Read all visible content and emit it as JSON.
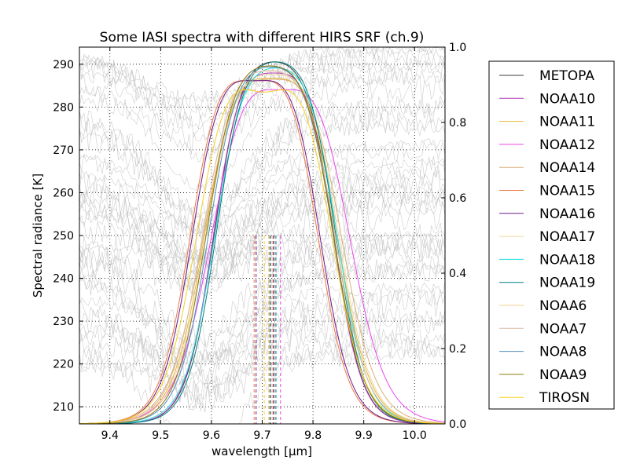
{
  "chart_data": {
    "type": "line",
    "title": "Some IASI spectra with different HIRS SRF (ch.9)",
    "xlabel": "wavelength [µm]",
    "ylabel": "Spectral radiance [K]",
    "ylabel_right": "",
    "xlim": [
      9.34,
      10.06
    ],
    "ylim": [
      206,
      294
    ],
    "ylim_right": [
      0.0,
      1.0
    ],
    "x_ticks": [
      "9.4",
      "9.5",
      "9.6",
      "9.7",
      "9.8",
      "9.9",
      "10.0"
    ],
    "x_tick_values": [
      9.4,
      9.5,
      9.6,
      9.7,
      9.8,
      9.9,
      10.0
    ],
    "y_ticks": [
      "210",
      "220",
      "230",
      "240",
      "250",
      "260",
      "270",
      "280",
      "290"
    ],
    "y_tick_values": [
      210,
      220,
      230,
      240,
      250,
      260,
      270,
      280,
      290
    ],
    "y_right_ticks": [
      "0.0",
      "0.2",
      "0.4",
      "0.6",
      "0.8",
      "1.0"
    ],
    "y_right_tick_values": [
      0.0,
      0.2,
      0.4,
      0.6,
      0.8,
      1.0
    ],
    "grid": true,
    "legend_position": "right",
    "background_spectra": {
      "color": "#c0c0c0",
      "approximate_count": 40,
      "note_levels_K": [
        293,
        290,
        288,
        284,
        279,
        274,
        270,
        266,
        262,
        259,
        256,
        253,
        250,
        248,
        246,
        245,
        244,
        243,
        242,
        240,
        238,
        236,
        233,
        231,
        228,
        226,
        224,
        222,
        220
      ]
    },
    "series": [
      {
        "name": "METOPA",
        "color": "#3c3c3c",
        "center": 9.723,
        "fwhm": 0.235,
        "edge": 0.028,
        "dip": 0.02
      },
      {
        "name": "NOAA10",
        "color": "#b03ab0",
        "center": 9.722,
        "fwhm": 0.235,
        "edge": 0.028,
        "dip": 0.05
      },
      {
        "name": "NOAA11",
        "color": "#e8b83a",
        "center": 9.717,
        "fwhm": 0.26,
        "edge": 0.032,
        "dip": 0.06
      },
      {
        "name": "NOAA12",
        "color": "#ee44ee",
        "center": 9.736,
        "fwhm": 0.27,
        "edge": 0.036,
        "dip": 0.08
      },
      {
        "name": "NOAA14",
        "color": "#d9b07a",
        "center": 9.72,
        "fwhm": 0.27,
        "edge": 0.034,
        "dip": 0.06
      },
      {
        "name": "NOAA15",
        "color": "#ee7744",
        "center": 9.684,
        "fwhm": 0.25,
        "edge": 0.03,
        "dip": 0.07
      },
      {
        "name": "NOAA16",
        "color": "#6a1a8a",
        "center": 9.688,
        "fwhm": 0.25,
        "edge": 0.03,
        "dip": 0.07
      },
      {
        "name": "NOAA17",
        "color": "#f3d7a0",
        "center": 9.72,
        "fwhm": 0.26,
        "edge": 0.032,
        "dip": 0.05
      },
      {
        "name": "NOAA18",
        "color": "#22dddd",
        "center": 9.727,
        "fwhm": 0.24,
        "edge": 0.03,
        "dip": 0.03
      },
      {
        "name": "NOAA19",
        "color": "#008080",
        "center": 9.727,
        "fwhm": 0.235,
        "edge": 0.028,
        "dip": 0.02
      },
      {
        "name": "NOAA6",
        "color": "#f0d090",
        "center": 9.713,
        "fwhm": 0.26,
        "edge": 0.032,
        "dip": 0.04
      },
      {
        "name": "NOAA7",
        "color": "#dcb8a0",
        "center": 9.713,
        "fwhm": 0.26,
        "edge": 0.032,
        "dip": 0.04
      },
      {
        "name": "NOAA8",
        "color": "#5090c0",
        "center": 9.717,
        "fwhm": 0.245,
        "edge": 0.03,
        "dip": 0.03
      },
      {
        "name": "NOAA9",
        "color": "#8b7a0a",
        "center": 9.715,
        "fwhm": 0.25,
        "edge": 0.03,
        "dip": 0.03
      },
      {
        "name": "TIROSN",
        "color": "#f5d020",
        "center": 9.704,
        "fwhm": 0.265,
        "edge": 0.032,
        "dip": 0.1
      }
    ]
  }
}
